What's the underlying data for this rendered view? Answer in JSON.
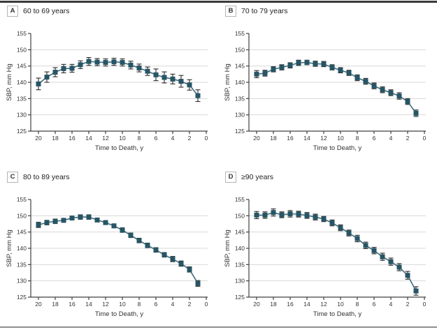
{
  "style": {
    "marker_color": "#275565",
    "line_color": "#3F6B7C",
    "error_bar_color": "#2B2B2B",
    "grid_color": "#D8D8D8",
    "axis_color": "#404040",
    "text_color": "#333333",
    "top_rule_color": "#3A3A3A",
    "bottom_rule_color": "#8F8F8F"
  },
  "chart_data": [
    {
      "type": "line",
      "panel_label": "A",
      "title": "60 to 69 years",
      "xlabel": "Time to Death, y",
      "ylabel": "SBP, mm Hg",
      "marker": "square",
      "grid": true,
      "x_axis_reversed": true,
      "ylim": [
        125,
        155
      ],
      "yticks": [
        125,
        130,
        135,
        140,
        145,
        150,
        155
      ],
      "xticks": [
        20,
        18,
        16,
        14,
        12,
        10,
        8,
        6,
        4,
        2,
        0
      ],
      "x": [
        20,
        19,
        18,
        17,
        16,
        15,
        14,
        13,
        12,
        11,
        10,
        9,
        8,
        7,
        6,
        5,
        4,
        3,
        2,
        1
      ],
      "values": [
        139.5,
        141.6,
        143.1,
        144.2,
        144.3,
        145.4,
        146.4,
        146.2,
        146.1,
        146.3,
        146.1,
        145.3,
        144.4,
        143.4,
        142.3,
        141.5,
        141.0,
        140.3,
        139.2,
        135.9
      ],
      "error": [
        1.8,
        1.6,
        1.4,
        1.3,
        1.2,
        1.2,
        1.2,
        1.1,
        1.1,
        1.1,
        1.1,
        1.2,
        1.2,
        1.3,
        1.8,
        1.7,
        1.5,
        1.8,
        1.6,
        1.8
      ]
    },
    {
      "type": "line",
      "panel_label": "B",
      "title": "70 to 79 years",
      "xlabel": "Time to Death, y",
      "ylabel": "SBP, mm Hg",
      "marker": "square",
      "grid": true,
      "x_axis_reversed": true,
      "ylim": [
        125,
        155
      ],
      "yticks": [
        125,
        130,
        135,
        140,
        145,
        150,
        155
      ],
      "xticks": [
        20,
        18,
        16,
        14,
        12,
        10,
        8,
        6,
        4,
        2,
        0
      ],
      "x": [
        20,
        19,
        18,
        17,
        16,
        15,
        14,
        13,
        12,
        11,
        10,
        9,
        8,
        7,
        6,
        5,
        4,
        3,
        2,
        1
      ],
      "values": [
        142.5,
        142.8,
        144.0,
        144.6,
        145.2,
        146.0,
        146.1,
        145.7,
        145.6,
        144.6,
        143.7,
        142.9,
        141.4,
        140.3,
        138.9,
        137.7,
        136.8,
        135.8,
        134.1,
        130.5
      ],
      "error": [
        1.1,
        0.9,
        0.8,
        0.8,
        0.8,
        0.8,
        0.7,
        0.8,
        0.8,
        0.8,
        0.8,
        0.8,
        0.9,
        0.9,
        0.9,
        0.9,
        0.9,
        1.0,
        0.9,
        1.0
      ]
    },
    {
      "type": "line",
      "panel_label": "C",
      "title": "80 to 89 years",
      "xlabel": "Time to Death, y",
      "ylabel": "SBP, mm Hg",
      "marker": "square",
      "grid": true,
      "x_axis_reversed": true,
      "ylim": [
        125,
        155
      ],
      "yticks": [
        125,
        130,
        135,
        140,
        145,
        150,
        155
      ],
      "xticks": [
        20,
        18,
        16,
        14,
        12,
        10,
        8,
        6,
        4,
        2,
        0
      ],
      "x": [
        20,
        19,
        18,
        17,
        16,
        15,
        14,
        13,
        12,
        11,
        10,
        9,
        8,
        7,
        6,
        5,
        4,
        3,
        2,
        1
      ],
      "values": [
        147.2,
        147.9,
        148.3,
        148.6,
        149.3,
        149.6,
        149.6,
        148.7,
        147.9,
        146.9,
        145.6,
        144.0,
        142.4,
        140.9,
        139.5,
        138.0,
        136.7,
        135.3,
        133.5,
        129.2
      ],
      "error": [
        0.8,
        0.7,
        0.7,
        0.6,
        0.6,
        0.7,
        0.7,
        0.6,
        0.6,
        0.6,
        0.7,
        0.7,
        0.7,
        0.7,
        0.7,
        0.7,
        0.8,
        0.8,
        0.8,
        0.9
      ]
    },
    {
      "type": "line",
      "panel_label": "D",
      "title": "≥90 years",
      "xlabel": "Time to Death, y",
      "ylabel": "SBP, mm Hg",
      "marker": "square",
      "grid": true,
      "x_axis_reversed": true,
      "ylim": [
        125,
        155
      ],
      "yticks": [
        125,
        130,
        135,
        140,
        145,
        150,
        155
      ],
      "xticks": [
        20,
        18,
        16,
        14,
        12,
        10,
        8,
        6,
        4,
        2,
        0
      ],
      "x": [
        20,
        19,
        18,
        17,
        16,
        15,
        14,
        13,
        12,
        11,
        10,
        9,
        8,
        7,
        6,
        5,
        4,
        3,
        2,
        1
      ],
      "values": [
        150.2,
        150.2,
        151.0,
        150.3,
        150.6,
        150.5,
        150.1,
        149.6,
        149.0,
        147.8,
        146.3,
        144.7,
        143.0,
        140.9,
        139.3,
        137.4,
        135.9,
        134.2,
        131.7,
        126.9
      ],
      "error": [
        1.1,
        1.0,
        1.1,
        0.9,
        1.0,
        0.9,
        0.9,
        0.9,
        0.8,
        0.9,
        0.9,
        0.9,
        1.0,
        1.0,
        1.0,
        1.1,
        1.1,
        1.1,
        1.2,
        1.3
      ]
    }
  ]
}
